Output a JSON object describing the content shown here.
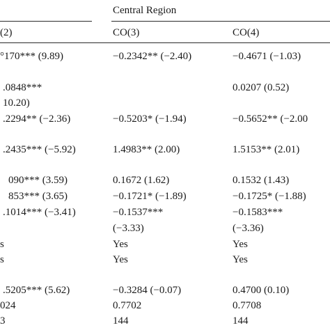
{
  "header": {
    "group_label": "Central Region",
    "col_left": "(2)",
    "col_mid": "CO(3)",
    "col_right": "CO(4)"
  },
  "rows": [
    {
      "left": "°170*** (9.89)",
      "mid": "−0.2342** (−2.40)",
      "right": "−0.4671 (−1.03)"
    },
    {
      "left": ".0848***",
      "mid": "",
      "right": "0.0207 (0.52)"
    },
    {
      "left": "10.20)",
      "mid": "",
      "right": ""
    },
    {
      "left": ".2294** (−2.36)",
      "mid": "−0.5203* (−1.94)",
      "right": "−0.5652** (−2.00"
    },
    {
      "left": ".2435*** (−5.92)",
      "mid": "1.4983** (2.00)",
      "right": "1.5153** (2.01)"
    },
    {
      "left": "090*** (3.59)",
      "mid": "0.1672 (1.62)",
      "right": "0.1532 (1.43)"
    },
    {
      "left": "853*** (3.65)",
      "mid": "−0.1721* (−1.89)",
      "right": "−0.1725* (−1.88)"
    },
    {
      "left": ".1014*** (−3.41)",
      "mid": "−0.1537***",
      "right": "−0.1583***"
    },
    {
      "left": "",
      "mid": "(−3.33)",
      "right": "(−3.36)"
    },
    {
      "left": "s",
      "mid": "Yes",
      "right": "Yes"
    },
    {
      "left": "s",
      "mid": "Yes",
      "right": "Yes"
    },
    {
      "left": ".5205*** (5.62)",
      "mid": "−0.3284 (−0.07)",
      "right": "0.4700 (0.10)"
    },
    {
      "left": "024",
      "mid": "0.7702",
      "right": "0.7708"
    },
    {
      "left": "3",
      "mid": "144",
      "right": "144"
    }
  ]
}
